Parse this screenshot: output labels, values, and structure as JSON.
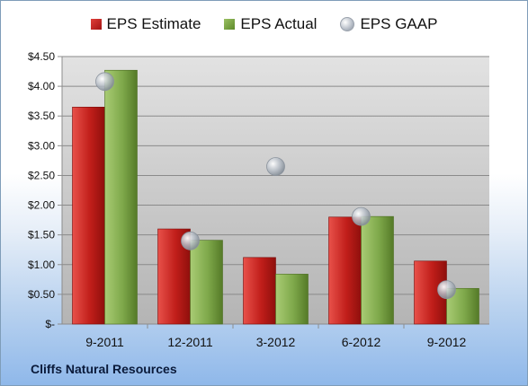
{
  "chart_data": {
    "type": "bar",
    "categories": [
      "9-2011",
      "12-2011",
      "3-2012",
      "6-2012",
      "9-2012"
    ],
    "series": [
      {
        "name": "EPS Estimate",
        "values": [
          3.65,
          1.6,
          1.12,
          1.8,
          1.06
        ],
        "color": "#c0211d"
      },
      {
        "name": "EPS Actual",
        "values": [
          4.27,
          1.41,
          0.84,
          1.81,
          0.6
        ],
        "color": "#7ea84a"
      },
      {
        "name": "EPS GAAP",
        "values": [
          4.08,
          1.4,
          2.65,
          1.81,
          0.58
        ],
        "color": "#b8bec6",
        "marker": "circle"
      }
    ],
    "yticks": [
      "$-",
      "$0.50",
      "$1.00",
      "$1.50",
      "$2.00",
      "$2.50",
      "$3.00",
      "$3.50",
      "$4.00",
      "$4.50"
    ],
    "ylim": [
      0,
      4.5
    ],
    "grid": true,
    "legend_position": "top"
  },
  "footer": {
    "company": "Cliffs Natural Resources"
  }
}
